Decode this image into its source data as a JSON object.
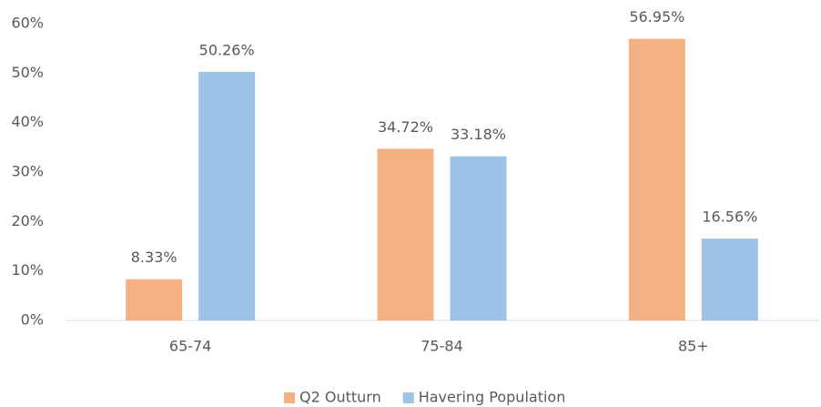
{
  "chart_data": {
    "type": "bar",
    "categories": [
      "65-74",
      "75-84",
      "85+"
    ],
    "series": [
      {
        "name": "Q2 Outturn",
        "color": "#f4b183",
        "values": [
          8.33,
          34.72,
          56.95
        ],
        "value_labels": [
          "8.33%",
          "34.72%",
          "56.95%"
        ]
      },
      {
        "name": "Havering Population",
        "color": "#9dc3e6",
        "values": [
          50.26,
          33.18,
          16.56
        ],
        "value_labels": [
          "50.26%",
          "33.18%",
          "16.56%"
        ]
      }
    ],
    "ylim": [
      0,
      60
    ],
    "yticks": [
      {
        "value": 0,
        "label": "0%"
      },
      {
        "value": 10,
        "label": "10%"
      },
      {
        "value": 20,
        "label": "20%"
      },
      {
        "value": 30,
        "label": "30%"
      },
      {
        "value": 40,
        "label": "40%"
      },
      {
        "value": 50,
        "label": "50%"
      },
      {
        "value": 60,
        "label": "60%"
      }
    ],
    "grid": false,
    "legend": "bottom"
  }
}
